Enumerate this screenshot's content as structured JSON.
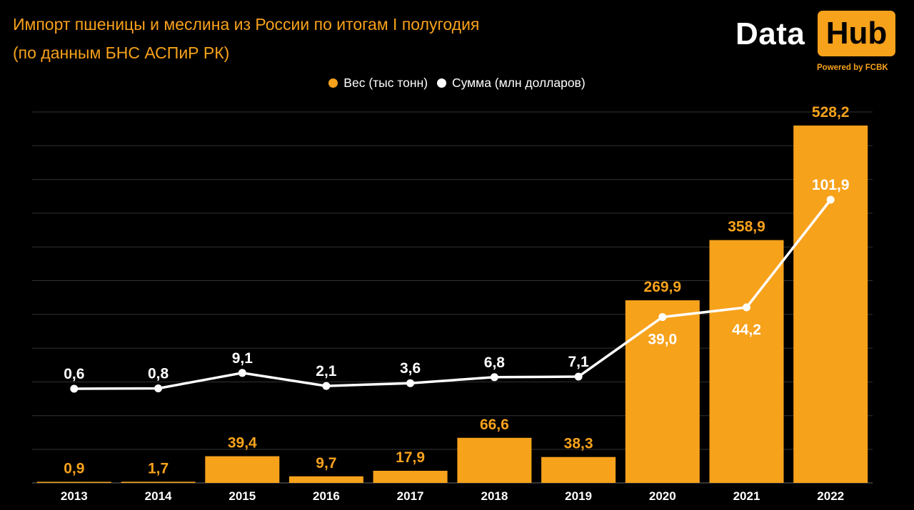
{
  "header": {
    "title_line1": "Импорт пшеницы и меслина из России по итогам I полугодия",
    "title_line2": "(по данным БНС АСПиР РК)"
  },
  "logo": {
    "word": "Data",
    "badge": "Hub",
    "tagline": "Powered by FCBK"
  },
  "colors": {
    "background": "#000000",
    "accent": "#f7a21b",
    "line": "#ffffff",
    "grid": "#333333"
  },
  "chart_data": {
    "type": "bar",
    "categories": [
      "2013",
      "2014",
      "2015",
      "2016",
      "2017",
      "2018",
      "2019",
      "2020",
      "2021",
      "2022"
    ],
    "series": [
      {
        "name": "Вес (тыс тонн)",
        "type": "bar",
        "color": "#f7a21b",
        "values": [
          0.9,
          1.7,
          39.4,
          9.7,
          17.9,
          66.6,
          38.3,
          269.9,
          358.9,
          528.2
        ],
        "labels": [
          "0,9",
          "1,7",
          "39,4",
          "9,7",
          "17,9",
          "66,6",
          "38,3",
          "269,9",
          "358,9",
          "528,2"
        ]
      },
      {
        "name": "Сумма (млн долларов)",
        "type": "line",
        "color": "#ffffff",
        "values": [
          0.6,
          0.8,
          9.1,
          2.1,
          3.6,
          6.8,
          7.1,
          39.0,
          44.2,
          101.9
        ],
        "labels": [
          "0,6",
          "0,8",
          "9,1",
          "2,1",
          "3,6",
          "6,8",
          "7,1",
          "39,0",
          "44,2",
          "101,9"
        ]
      }
    ],
    "legend_position": "top-center",
    "grid": true,
    "axis_ticks_shown": false
  }
}
